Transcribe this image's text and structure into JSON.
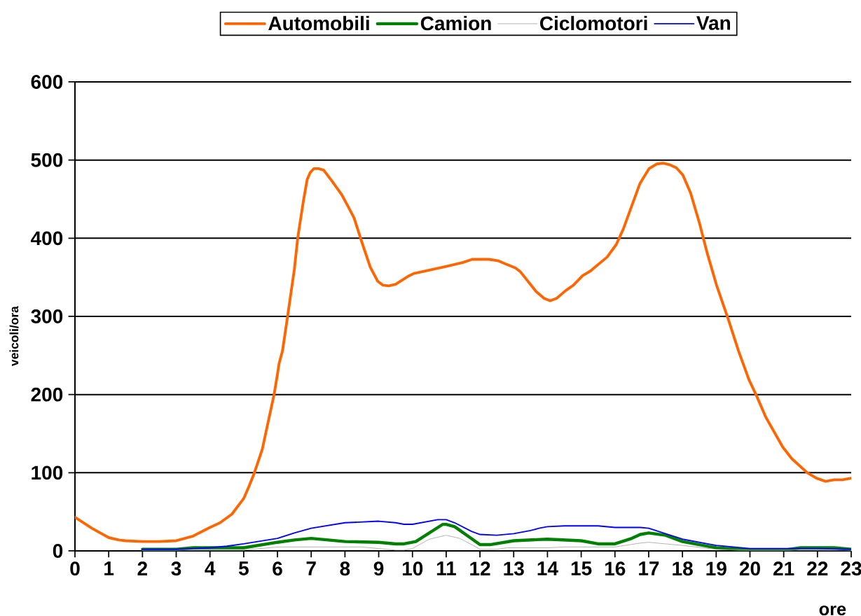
{
  "chart_data": {
    "type": "line",
    "xlabel": "ore",
    "ylabel": "veicoli/ora",
    "xlim": [
      0,
      23
    ],
    "xticks": [
      0,
      1,
      2,
      3,
      4,
      5,
      6,
      7,
      8,
      9,
      10,
      11,
      12,
      13,
      14,
      15,
      16,
      17,
      18,
      19,
      20,
      21,
      22,
      23
    ],
    "ylim": [
      0,
      600
    ],
    "yticks": [
      0,
      100,
      200,
      300,
      400,
      500,
      600
    ],
    "grid": "y",
    "legend": "top",
    "marker": "none",
    "line_style": "solid",
    "series": [
      {
        "name": "Automobili",
        "color": "#ff6600",
        "x": [
          0,
          0.5,
          1,
          1.3,
          1.5,
          2,
          2.5,
          3,
          3.5,
          4,
          4.3,
          4.65,
          5,
          5.15,
          5.3,
          5.55,
          5.9,
          6,
          6.05,
          6.15,
          6.3,
          6.5,
          6.6,
          6.67,
          6.77,
          6.88,
          6.97,
          7.08,
          7.22,
          7.37,
          7.6,
          7.9,
          8.1,
          8.27,
          8.5,
          8.75,
          8.97,
          9.12,
          9.3,
          9.5,
          9.9,
          10.05,
          11,
          11.5,
          11.77,
          12.27,
          12.55,
          12.77,
          13.05,
          13.2,
          13.66,
          13.9,
          14.08,
          14.27,
          14.54,
          14.77,
          15.04,
          15.27,
          15.77,
          16.04,
          16.25,
          16.74,
          17.01,
          17.24,
          17.43,
          17.62,
          17.82,
          18.01,
          18.24,
          18.5,
          18.74,
          19.01,
          19.36,
          19.66,
          19.97,
          20.2,
          20.47,
          20.97,
          21.24,
          21.7,
          21.97,
          22.24,
          22.5,
          22.74,
          23
        ],
        "values": [
          43,
          29,
          17,
          14,
          13,
          12,
          12,
          13,
          19,
          30,
          36,
          47,
          67,
          82,
          98,
          130,
          200,
          226,
          240,
          256,
          300,
          360,
          400,
          420,
          448,
          475,
          484,
          489,
          489,
          487,
          474,
          456,
          440,
          426,
          395,
          363,
          345,
          340,
          339,
          341,
          352,
          355,
          364,
          369,
          373,
          373,
          371,
          367,
          362,
          357,
          332,
          323,
          320,
          323,
          333,
          340,
          352,
          358,
          376,
          392,
          412,
          470,
          489,
          495,
          496,
          494,
          490,
          481,
          458,
          420,
          380,
          340,
          296,
          256,
          219,
          198,
          171,
          133,
          118,
          100,
          93,
          89,
          91,
          91,
          93
        ]
      },
      {
        "name": "Camion",
        "color": "#008000",
        "x": [
          2,
          3,
          3.5,
          4,
          5,
          6,
          6.5,
          7,
          8,
          9,
          9.5,
          9.75,
          10.1,
          10.9,
          11,
          11.25,
          12,
          12.3,
          13,
          14,
          15,
          15.5,
          16,
          16.5,
          16.75,
          17,
          17.5,
          18,
          19,
          20,
          21,
          21.5,
          22.5,
          23
        ],
        "values": [
          2,
          2,
          4,
          4,
          4,
          11,
          14,
          16,
          12,
          11,
          9,
          9,
          12,
          34,
          34,
          31,
          8,
          8,
          13,
          15,
          13,
          9,
          9,
          16,
          21,
          23,
          20,
          12,
          4,
          1,
          1,
          4,
          4,
          2
        ]
      },
      {
        "name": "Ciclomotori",
        "color": "#a0a0a0",
        "x": [
          2,
          5,
          6,
          8.5,
          9,
          9.5,
          9.75,
          10,
          10.5,
          11,
          11.4,
          11.8,
          12,
          12.5,
          12.8,
          14,
          14.5,
          16,
          16.75,
          17,
          18,
          19,
          20,
          23
        ],
        "values": [
          1,
          1,
          5,
          5,
          3,
          1,
          1,
          3,
          15,
          20,
          16,
          7,
          2,
          2,
          4,
          4,
          5,
          5,
          10,
          11,
          7,
          2,
          1,
          1
        ]
      },
      {
        "name": "Van",
        "color": "#0000ff",
        "x": [
          2,
          3,
          3.5,
          4,
          4.5,
          5,
          6,
          6.5,
          7,
          8,
          9,
          9.5,
          9.75,
          10,
          10.75,
          11,
          11.25,
          11.75,
          12,
          12.5,
          13,
          13.5,
          13.75,
          14,
          14.5,
          15.5,
          16,
          16.75,
          17,
          18,
          19,
          20,
          21,
          22,
          23
        ],
        "values": [
          2,
          2,
          3,
          4,
          6,
          9,
          16,
          23,
          29,
          36,
          38,
          36,
          34,
          34,
          40,
          40,
          36,
          25,
          21,
          20,
          22,
          26,
          29,
          31,
          32,
          32,
          30,
          30,
          29,
          15,
          7,
          3,
          3,
          3,
          2
        ]
      }
    ]
  }
}
